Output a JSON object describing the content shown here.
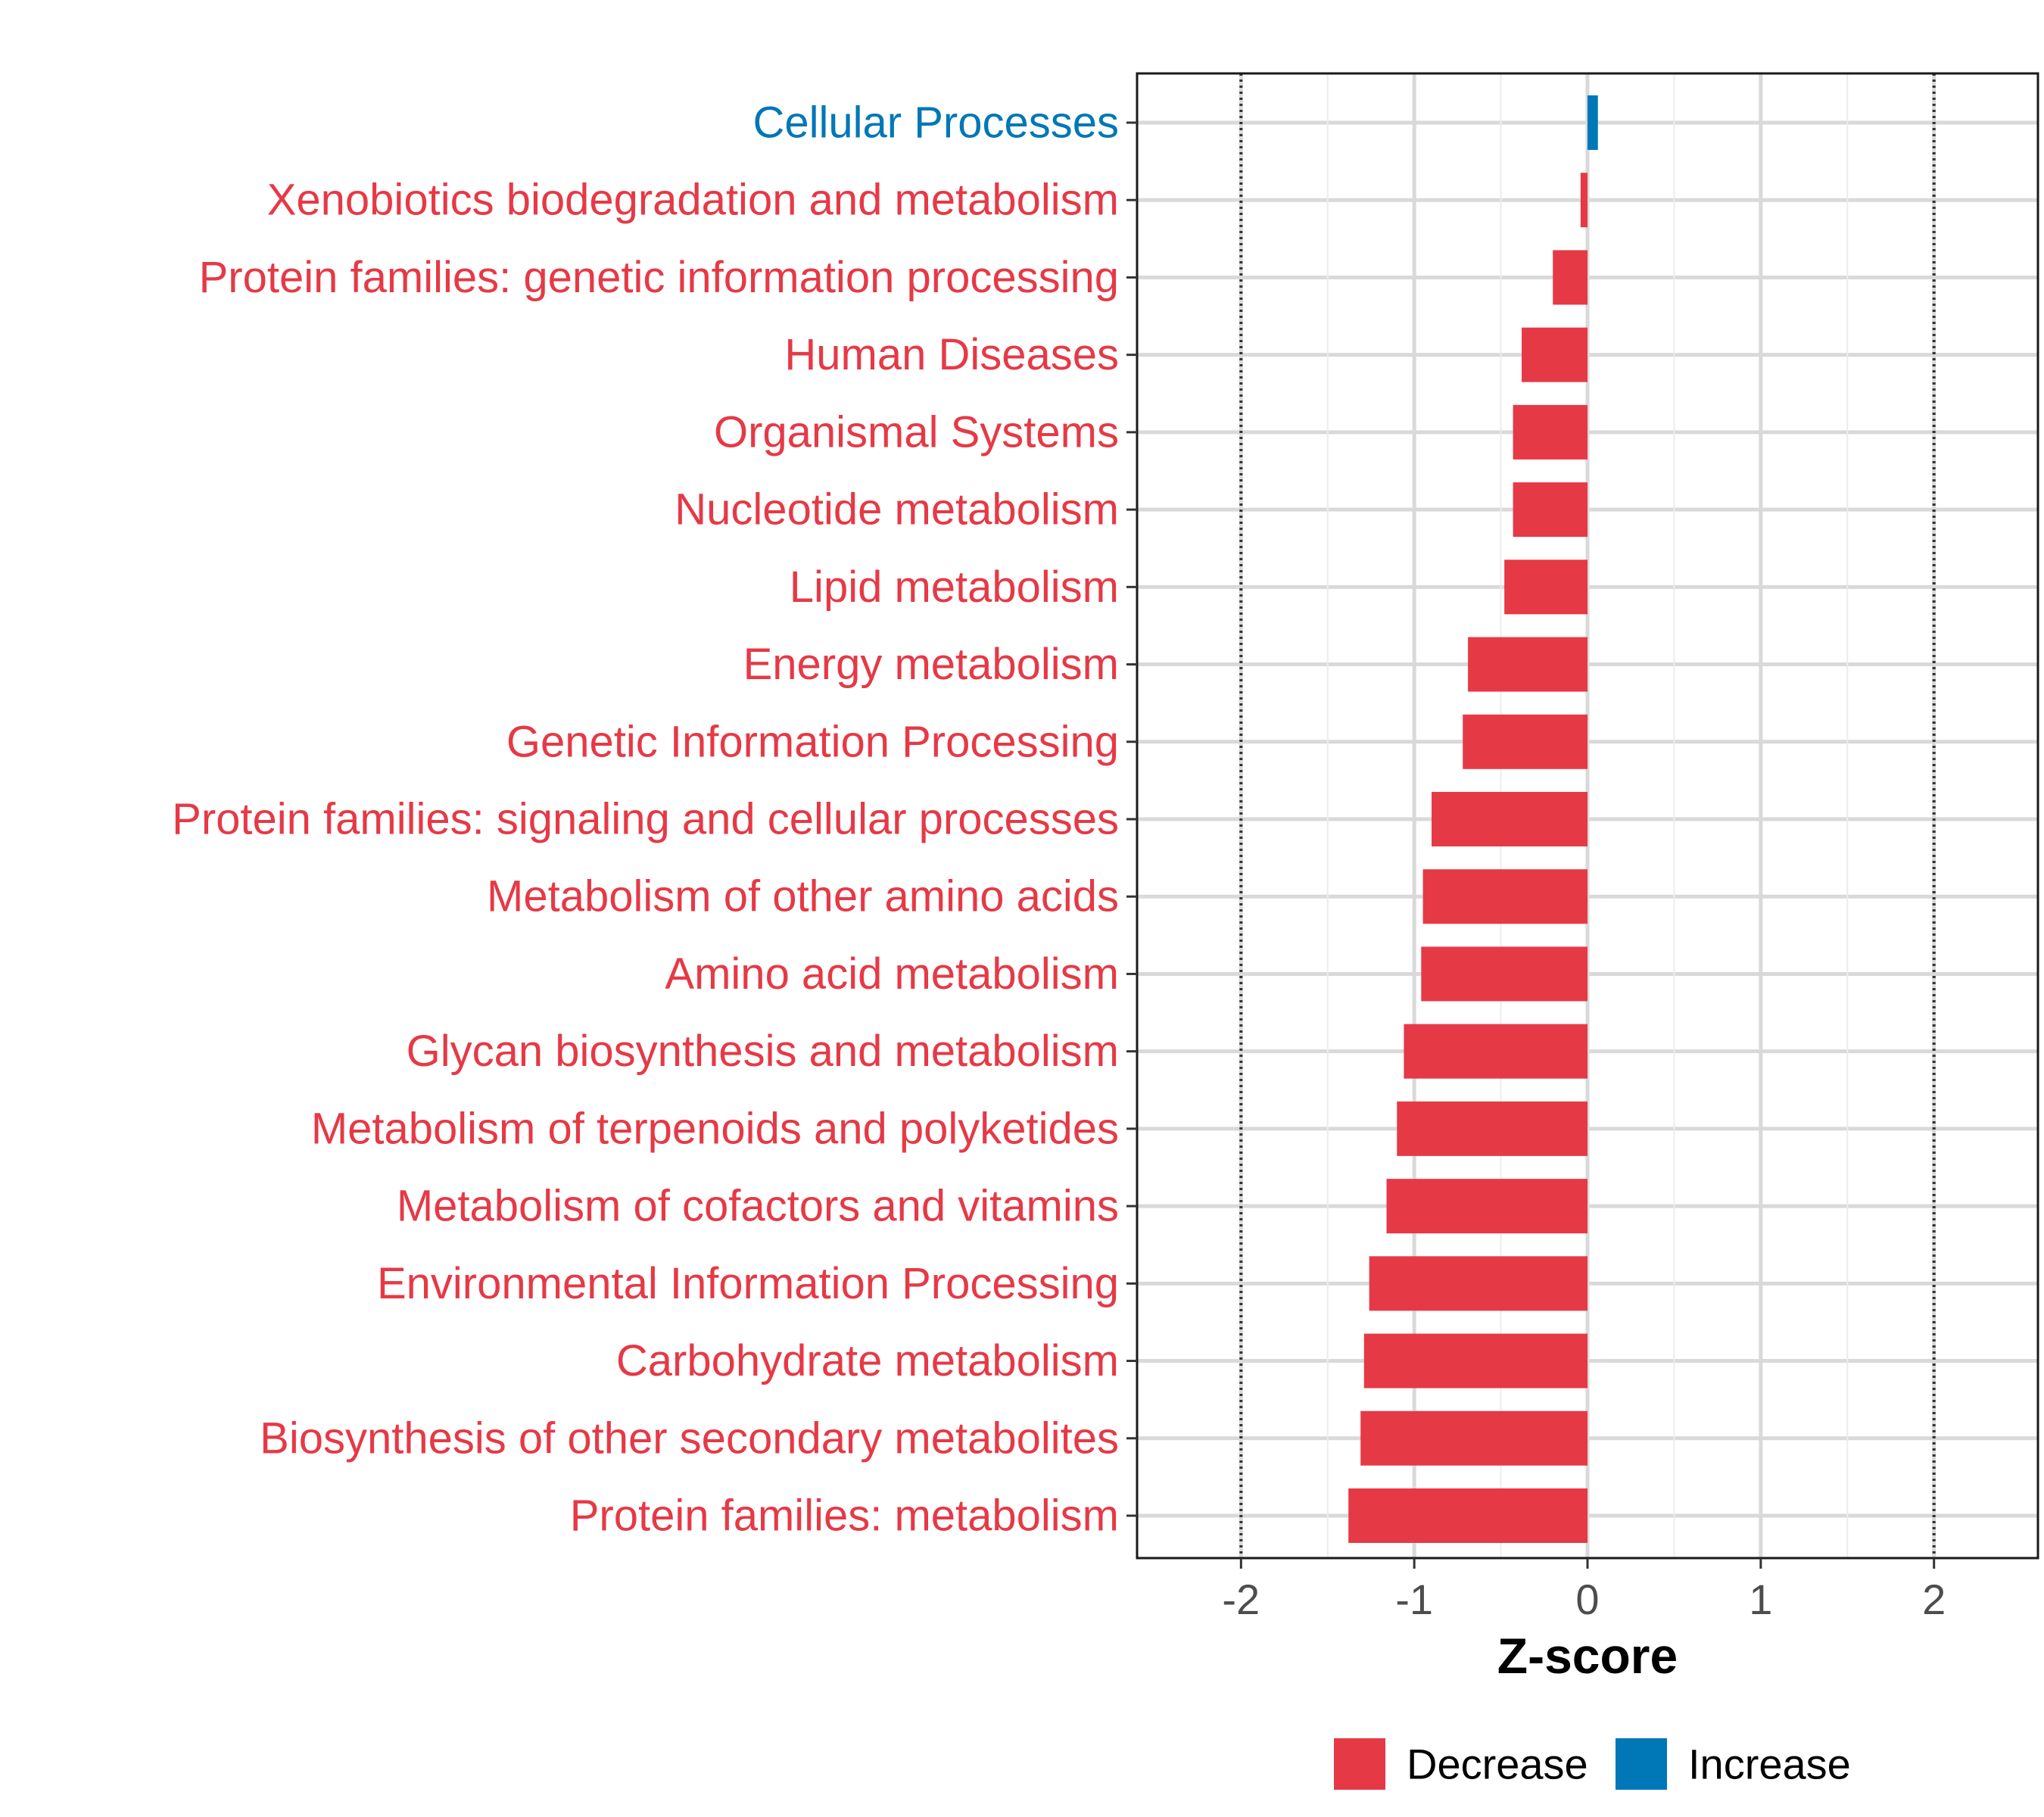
{
  "chart_data": {
    "type": "bar",
    "orientation": "horizontal",
    "categories": [
      "Cellular Processes",
      "Xenobiotics biodegradation and metabolism",
      "Protein families: genetic information processing",
      "Human Diseases",
      "Organismal Systems",
      "Nucleotide metabolism",
      "Lipid metabolism",
      "Energy metabolism",
      "Genetic Information Processing",
      "Protein families: signaling and cellular processes",
      "Metabolism of other amino acids",
      "Amino acid metabolism",
      "Glycan biosynthesis and metabolism",
      "Metabolism of terpenoids and polyketides",
      "Metabolism of cofactors and vitamins",
      "Environmental Information Processing",
      "Carbohydrate metabolism",
      "Biosynthesis of other secondary metabolites",
      "Protein families: metabolism"
    ],
    "values": [
      0.06,
      -0.04,
      -0.2,
      -0.38,
      -0.43,
      -0.43,
      -0.48,
      -0.69,
      -0.72,
      -0.9,
      -0.95,
      -0.96,
      -1.06,
      -1.1,
      -1.16,
      -1.26,
      -1.29,
      -1.31,
      -1.38
    ],
    "xlabel": "Z-score",
    "ylabel": "",
    "xlim": [
      -2.6,
      2.6
    ],
    "xticks": [
      -2,
      -1,
      0,
      1,
      2
    ],
    "xtick_labels": [
      "-2",
      "-1",
      "0",
      "1",
      "2"
    ],
    "reference_lines": [
      -2,
      2
    ],
    "grid": true,
    "legend": {
      "placement": "bottom",
      "entries": [
        {
          "label": "Decrease",
          "color": "#E63946"
        },
        {
          "label": "Increase",
          "color": "#0077B6"
        }
      ]
    },
    "colors": {
      "decrease": "#E63946",
      "increase": "#0077B6"
    }
  }
}
